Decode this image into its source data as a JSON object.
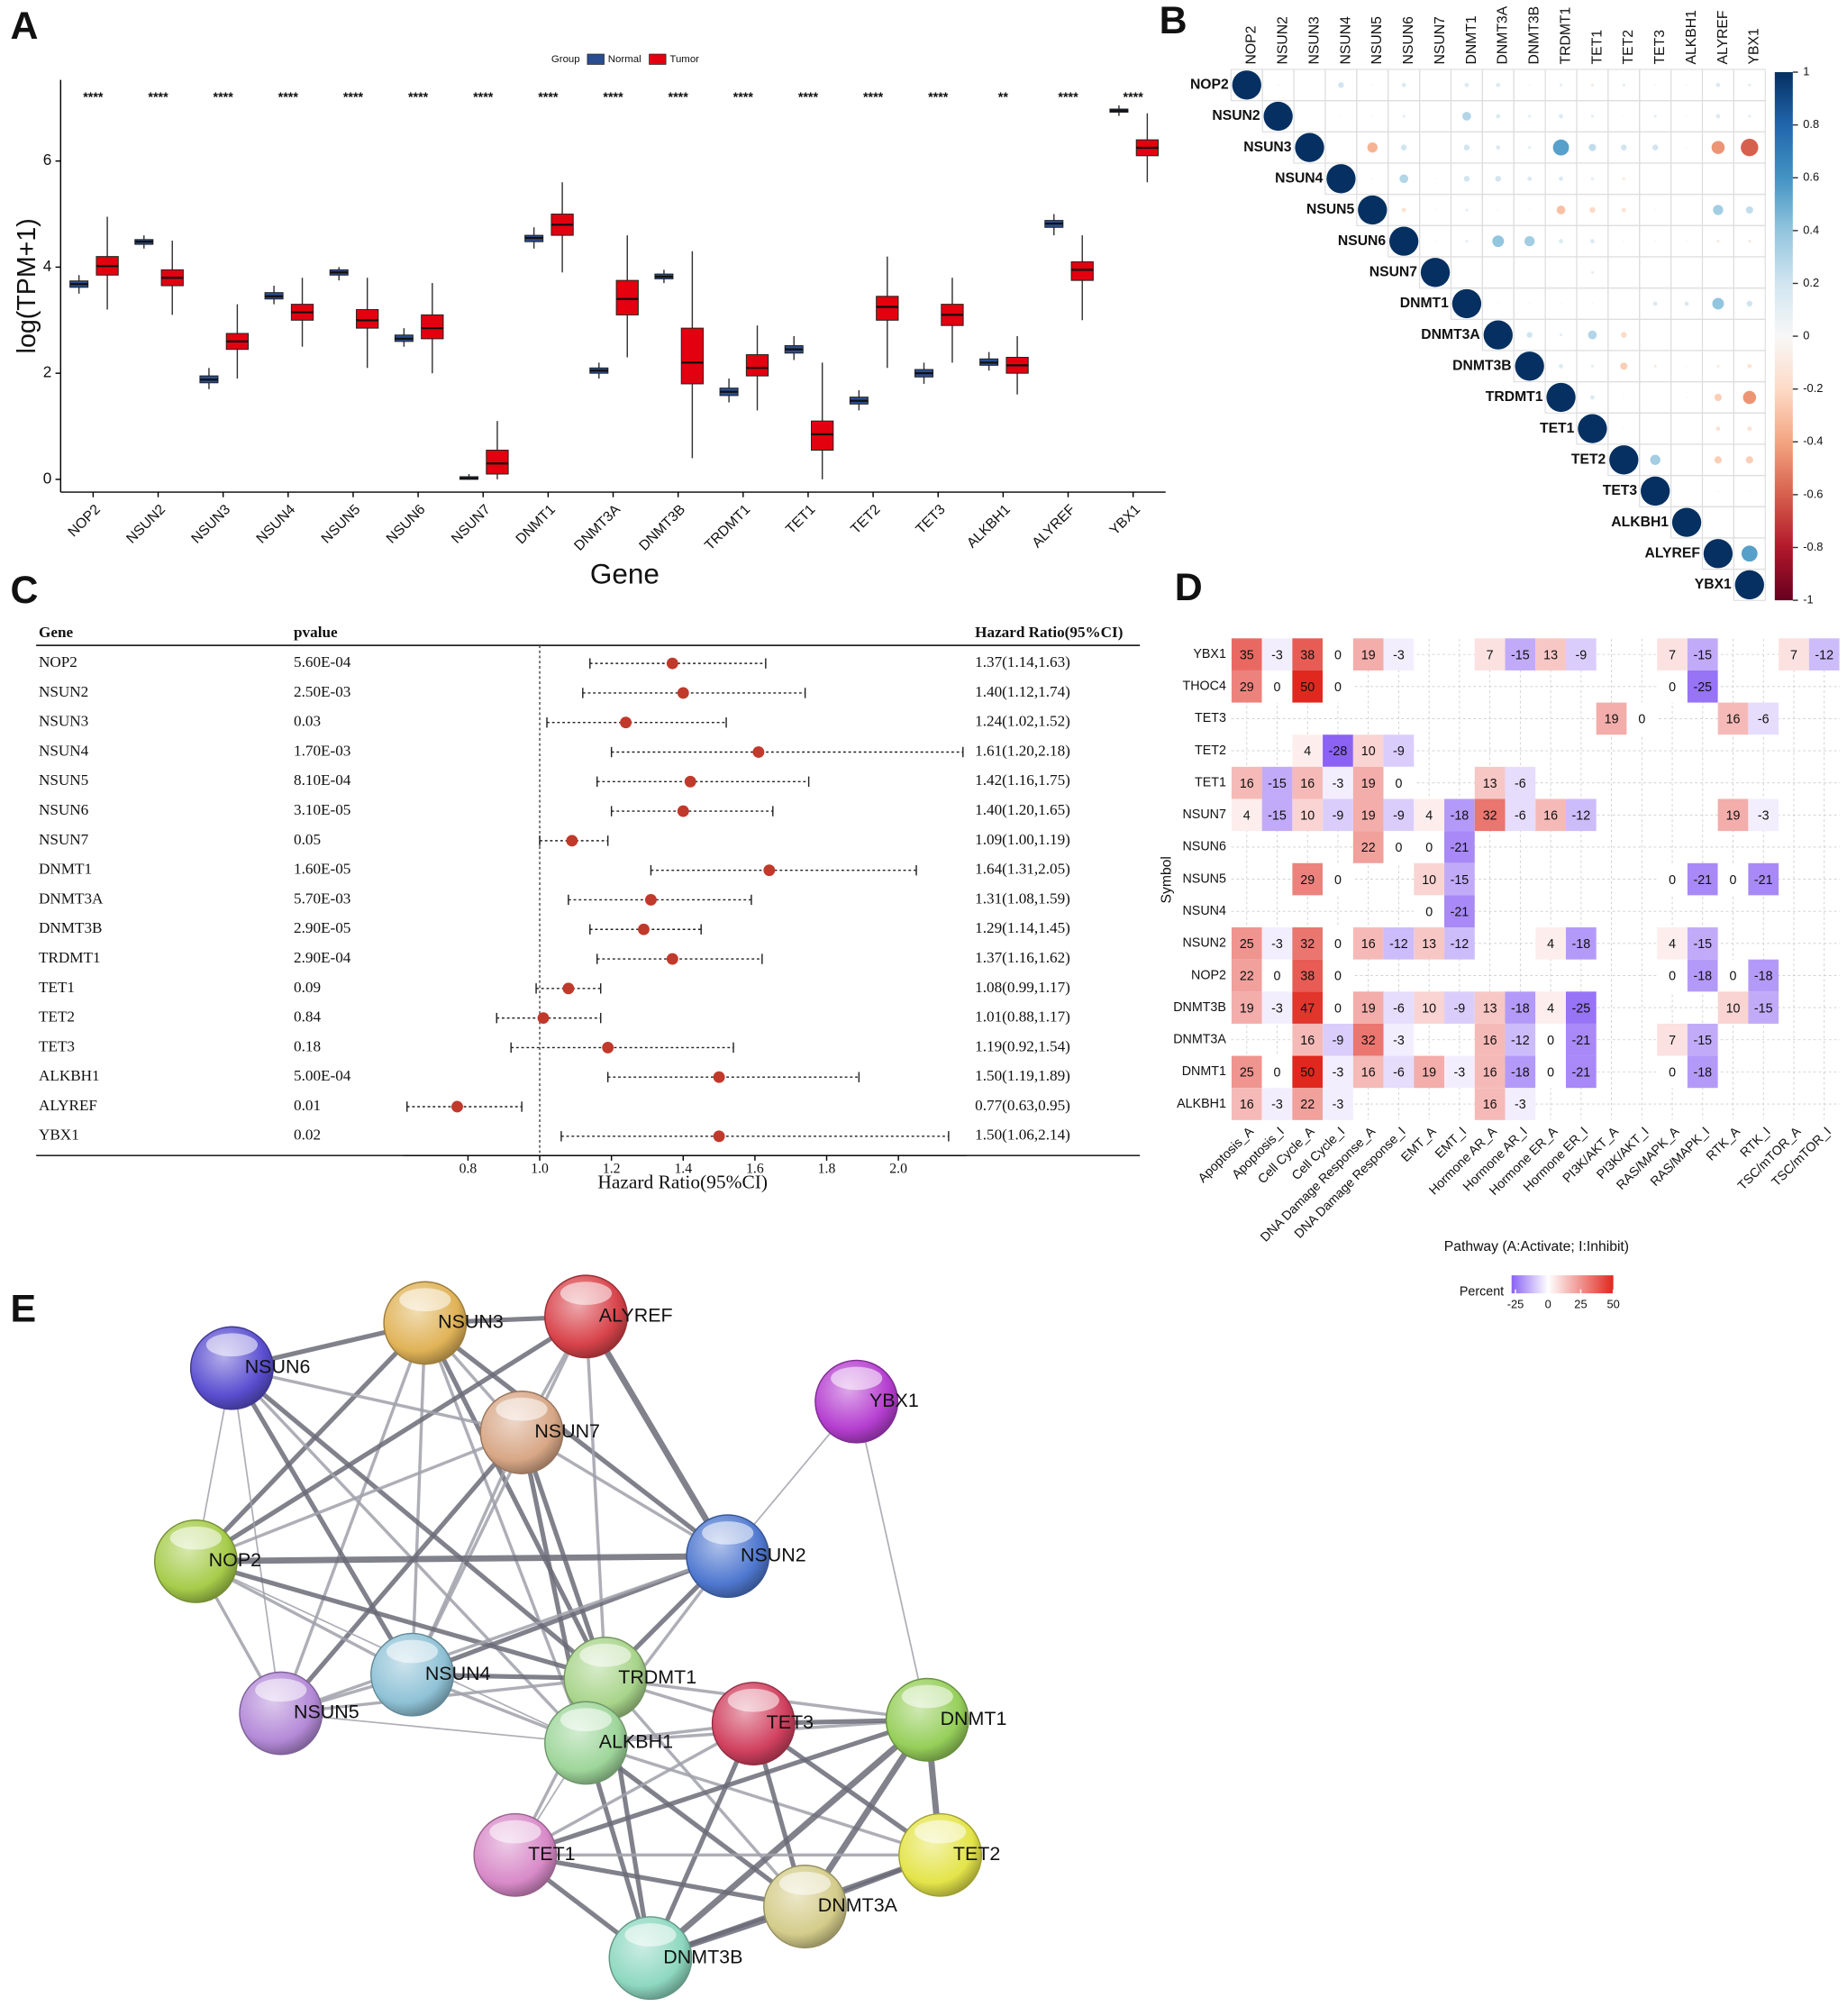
{
  "chart_data": [
    {
      "panel": "A",
      "type": "box",
      "legend_title": "Group",
      "x_label": "Gene",
      "y_label": "log(TPM+1)",
      "categories": [
        "NOP2",
        "NSUN2",
        "NSUN3",
        "NSUN4",
        "NSUN5",
        "NSUN6",
        "NSUN7",
        "DNMT1",
        "DNMT3A",
        "DNMT3B",
        "TRDMT1",
        "TET1",
        "TET2",
        "TET3",
        "ALKBH1",
        "ALYREF",
        "YBX1"
      ],
      "series": [
        {
          "name": "Normal",
          "color": "#2a4d8f",
          "median": [
            3.68,
            4.48,
            1.88,
            3.45,
            3.9,
            2.65,
            0.02,
            4.55,
            2.05,
            3.82,
            1.65,
            2.45,
            1.48,
            2.0,
            2.2,
            4.82,
            6.95
          ],
          "q1": [
            3.62,
            4.43,
            1.82,
            3.4,
            3.85,
            2.6,
            0.0,
            4.48,
            2.0,
            3.78,
            1.58,
            2.38,
            1.42,
            1.93,
            2.15,
            4.75,
            6.92
          ],
          "q3": [
            3.74,
            4.52,
            1.95,
            3.52,
            3.95,
            2.72,
            0.05,
            4.6,
            2.1,
            3.87,
            1.72,
            2.52,
            1.55,
            2.07,
            2.27,
            4.88,
            6.98
          ],
          "whisker_low": [
            3.5,
            4.35,
            1.7,
            3.3,
            3.75,
            2.5,
            0,
            4.35,
            1.9,
            3.7,
            1.45,
            2.25,
            1.3,
            1.8,
            2.05,
            4.6,
            6.85
          ],
          "whisker_high": [
            3.85,
            4.6,
            2.1,
            3.65,
            4.0,
            2.85,
            0.1,
            4.75,
            2.2,
            3.95,
            1.9,
            2.7,
            1.68,
            2.2,
            2.4,
            5.0,
            7.05
          ]
        },
        {
          "name": "Tumor",
          "color": "#e3000f",
          "median": [
            4.02,
            3.8,
            2.6,
            3.15,
            3.0,
            2.85,
            0.3,
            4.8,
            3.4,
            2.2,
            2.1,
            0.85,
            3.25,
            3.1,
            2.15,
            3.95,
            6.25
          ],
          "q1": [
            3.85,
            3.65,
            2.45,
            3.0,
            2.85,
            2.65,
            0.1,
            4.6,
            3.1,
            1.8,
            1.95,
            0.55,
            3.0,
            2.9,
            2.0,
            3.75,
            6.1
          ],
          "q3": [
            4.2,
            3.95,
            2.75,
            3.3,
            3.2,
            3.1,
            0.55,
            5.0,
            3.75,
            2.85,
            2.35,
            1.1,
            3.45,
            3.3,
            2.3,
            4.1,
            6.4
          ],
          "whisker_low": [
            3.2,
            3.1,
            1.9,
            2.5,
            2.1,
            2.0,
            0,
            3.9,
            2.3,
            0.4,
            1.3,
            0,
            2.1,
            2.2,
            1.6,
            3.0,
            5.6
          ],
          "whisker_high": [
            4.95,
            4.5,
            3.3,
            3.8,
            3.8,
            3.7,
            1.1,
            5.6,
            4.6,
            4.3,
            2.9,
            2.2,
            4.2,
            3.8,
            2.7,
            4.6,
            6.9
          ]
        }
      ],
      "annotations": [
        "****",
        "****",
        "****",
        "****",
        "****",
        "****",
        "****",
        "****",
        "****",
        "****",
        "****",
        "****",
        "****",
        "****",
        "**",
        "****",
        "****"
      ],
      "ylim": [
        -0.24,
        7.53
      ],
      "yticks": [
        0,
        2,
        4,
        6
      ],
      "legend_position": "top"
    },
    {
      "panel": "B",
      "type": "corrplot",
      "labels": [
        "NOP2",
        "NSUN2",
        "NSUN3",
        "NSUN4",
        "NSUN5",
        "NSUN6",
        "NSUN7",
        "DNMT1",
        "DNMT3A",
        "DNMT3B",
        "TRDMT1",
        "TET1",
        "TET2",
        "TET3",
        "ALKBH1",
        "ALYREF",
        "YBX1"
      ],
      "matrix": [
        [
          1,
          -0.05,
          0.02,
          0.2,
          0.05,
          0.15,
          0.02,
          0.15,
          0.15,
          0.05,
          0.1,
          -0.1,
          0.1,
          0.05,
          0.05,
          0.15,
          0.1
        ],
        [
          null,
          1,
          0.02,
          0.05,
          0.05,
          0.1,
          0.02,
          0.3,
          0.15,
          0.1,
          0.15,
          0.1,
          0.05,
          0.1,
          0.05,
          0.15,
          0.1
        ],
        [
          null,
          null,
          1,
          0.02,
          -0.35,
          0.2,
          0.02,
          0.2,
          0.15,
          0.1,
          0.55,
          0.25,
          0.2,
          0.2,
          0.05,
          -0.45,
          -0.6
        ],
        [
          null,
          null,
          null,
          1,
          -0.05,
          0.3,
          0.05,
          0.2,
          0.2,
          0.15,
          0.15,
          0.1,
          -0.1,
          0.02,
          0.02,
          0.02,
          0.02
        ],
        [
          null,
          null,
          null,
          null,
          1,
          -0.15,
          0.05,
          0.1,
          -0.05,
          -0.05,
          -0.3,
          -0.2,
          -0.15,
          0.05,
          0.02,
          0.35,
          0.25
        ],
        [
          null,
          null,
          null,
          null,
          null,
          1,
          0.05,
          0.1,
          0.4,
          0.35,
          0.15,
          0.15,
          0.05,
          -0.05,
          -0.05,
          -0.1,
          -0.1
        ],
        [
          null,
          null,
          null,
          null,
          null,
          null,
          1,
          0.02,
          0.02,
          0.02,
          0.02,
          0.1,
          0.02,
          0.02,
          0.02,
          0.02,
          0.02
        ],
        [
          null,
          null,
          null,
          null,
          null,
          null,
          null,
          1,
          0.05,
          0.05,
          0.05,
          0.05,
          0.05,
          0.15,
          0.15,
          0.4,
          0.2
        ],
        [
          null,
          null,
          null,
          null,
          null,
          null,
          null,
          null,
          1,
          0.2,
          0.1,
          0.3,
          -0.2,
          0.02,
          0.02,
          0.02,
          0.02
        ],
        [
          null,
          null,
          null,
          null,
          null,
          null,
          null,
          null,
          null,
          1,
          0.15,
          0.1,
          -0.25,
          -0.1,
          -0.05,
          -0.1,
          -0.15
        ],
        [
          null,
          null,
          null,
          null,
          null,
          null,
          null,
          null,
          null,
          null,
          1,
          0.15,
          0.05,
          0.02,
          0.05,
          -0.25,
          -0.45
        ],
        [
          null,
          null,
          null,
          null,
          null,
          null,
          null,
          null,
          null,
          null,
          null,
          1,
          0.05,
          0.02,
          0.02,
          -0.15,
          -0.15
        ],
        [
          null,
          null,
          null,
          null,
          null,
          null,
          null,
          null,
          null,
          null,
          null,
          null,
          1,
          0.35,
          0.02,
          -0.25,
          -0.25
        ],
        [
          null,
          null,
          null,
          null,
          null,
          null,
          null,
          null,
          null,
          null,
          null,
          null,
          null,
          1,
          0.02,
          0.05,
          0.05
        ],
        [
          null,
          null,
          null,
          null,
          null,
          null,
          null,
          null,
          null,
          null,
          null,
          null,
          null,
          null,
          1,
          0.02,
          0.02
        ],
        [
          null,
          null,
          null,
          null,
          null,
          null,
          null,
          null,
          null,
          null,
          null,
          null,
          null,
          null,
          null,
          1,
          0.55
        ],
        [
          null,
          null,
          null,
          null,
          null,
          null,
          null,
          null,
          null,
          null,
          null,
          null,
          null,
          null,
          null,
          null,
          1
        ]
      ],
      "clim": [
        -1,
        1
      ],
      "colorbar_ticks": [
        1,
        0.8,
        0.6,
        0.4,
        0.2,
        0,
        -0.2,
        -0.4,
        -0.6,
        -0.8,
        -1
      ],
      "colorscale": [
        "#67001f",
        "#b2182b",
        "#d6604d",
        "#f4a582",
        "#fddbc7",
        "#f7f7f7",
        "#d1e5f0",
        "#92c5de",
        "#4393c3",
        "#2166ac",
        "#053061"
      ],
      "label_color": "#d7191c"
    },
    {
      "panel": "C",
      "type": "forest",
      "column_headers": [
        "Gene",
        "pvalue",
        "Hazard Ratio(95%CI)"
      ],
      "categories": [
        "NOP2",
        "NSUN2",
        "NSUN3",
        "NSUN4",
        "NSUN5",
        "NSUN6",
        "NSUN7",
        "DNMT1",
        "DNMT3A",
        "DNMT3B",
        "TRDMT1",
        "TET1",
        "TET2",
        "TET3",
        "ALKBH1",
        "ALYREF",
        "YBX1"
      ],
      "pvalues": [
        "5.60E-04",
        "2.50E-03",
        "0.03",
        "1.70E-03",
        "8.10E-04",
        "3.10E-05",
        "0.05",
        "1.60E-05",
        "5.70E-03",
        "2.90E-05",
        "2.90E-04",
        "0.09",
        "0.84",
        "0.18",
        "5.00E-04",
        "0.01",
        "0.02"
      ],
      "values": [
        1.37,
        1.4,
        1.24,
        1.61,
        1.42,
        1.4,
        1.09,
        1.64,
        1.31,
        1.29,
        1.37,
        1.08,
        1.01,
        1.19,
        1.5,
        0.77,
        1.5
      ],
      "lower": [
        1.14,
        1.12,
        1.02,
        1.2,
        1.16,
        1.2,
        1.0,
        1.31,
        1.08,
        1.14,
        1.16,
        0.99,
        0.88,
        0.92,
        1.19,
        0.63,
        1.06
      ],
      "upper": [
        1.63,
        1.74,
        1.52,
        2.18,
        1.75,
        1.65,
        1.19,
        2.05,
        1.59,
        1.45,
        1.62,
        1.17,
        1.17,
        1.54,
        1.89,
        0.95,
        2.14
      ],
      "value_labels": [
        "1.37(1.14,1.63)",
        "1.40(1.12,1.74)",
        "1.24(1.02,1.52)",
        "1.61(1.20,2.18)",
        "1.42(1.16,1.75)",
        "1.40(1.20,1.65)",
        "1.09(1.00,1.19)",
        "1.64(1.31,2.05)",
        "1.31(1.08,1.59)",
        "1.29(1.14,1.45)",
        "1.37(1.16,1.62)",
        "1.08(0.99,1.17)",
        "1.01(0.88,1.17)",
        "1.19(0.92,1.54)",
        "1.50(1.19,1.89)",
        "0.77(0.63,0.95)",
        "1.50(1.06,2.14)"
      ],
      "x_label": "Hazard Ratio(95%CI)",
      "xlim": [
        0.62,
        2.19
      ],
      "xticks": [
        0.8,
        {
          "value": 1,
          "label": "1.0"
        },
        1.2,
        1.4,
        1.6,
        1.8,
        {
          "value": 2,
          "label": "2.0"
        }
      ],
      "reference_line": 1,
      "color": "#c0392b"
    },
    {
      "panel": "D",
      "type": "heatmap",
      "rows": [
        "YBX1",
        "THOC4",
        "TET3",
        "TET2",
        "TET1",
        "NSUN7",
        "NSUN6",
        "NSUN5",
        "NSUN4",
        "NSUN2",
        "NOP2",
        "DNMT3B",
        "DNMT3A",
        "DNMT1",
        "ALKBH1"
      ],
      "columns": [
        "Apoptosis_A",
        "Apoptosis_I",
        "Cell Cycle_A",
        "Cell Cycle_I",
        "DNA Damage Response_A",
        "DNA Damage Response_I",
        "EMT_A",
        "EMT_I",
        "Hormone AR_A",
        "Hormone AR_I",
        "Hormone ER_A",
        "Hormone ER_I",
        "PI3K/AKT_A",
        "PI3K/AKT_I",
        "RAS/MAPK_A",
        "RAS/MAPK_I",
        "RTK_A",
        "RTK_I",
        "TSC/mTOR_A",
        "TSC/mTOR_I"
      ],
      "values": [
        [
          35,
          -3,
          38,
          0,
          19,
          -3,
          null,
          null,
          7,
          -15,
          13,
          -9,
          null,
          null,
          7,
          -15,
          null,
          null,
          7,
          -12
        ],
        [
          29,
          0,
          50,
          0,
          null,
          null,
          null,
          null,
          null,
          null,
          null,
          null,
          null,
          null,
          0,
          -25,
          null,
          null,
          null,
          null
        ],
        [
          null,
          null,
          null,
          null,
          null,
          null,
          null,
          null,
          null,
          null,
          null,
          null,
          19,
          0,
          null,
          null,
          16,
          -6,
          null,
          null
        ],
        [
          null,
          null,
          4,
          -28,
          10,
          -9,
          null,
          null,
          null,
          null,
          null,
          null,
          null,
          null,
          null,
          null,
          null,
          null,
          null,
          null
        ],
        [
          16,
          -15,
          16,
          -3,
          19,
          0,
          null,
          null,
          13,
          -6,
          null,
          null,
          null,
          null,
          null,
          null,
          null,
          null,
          null,
          null
        ],
        [
          4,
          -15,
          10,
          -9,
          19,
          -9,
          4,
          -18,
          32,
          -6,
          16,
          -12,
          null,
          null,
          null,
          null,
          19,
          -3,
          null,
          null
        ],
        [
          null,
          null,
          null,
          null,
          22,
          0,
          0,
          -21,
          null,
          null,
          null,
          null,
          null,
          null,
          null,
          null,
          null,
          null,
          null,
          null
        ],
        [
          null,
          null,
          29,
          0,
          null,
          null,
          10,
          -15,
          null,
          null,
          null,
          null,
          null,
          null,
          0,
          -21,
          0,
          -21,
          null,
          null
        ],
        [
          null,
          null,
          null,
          null,
          null,
          null,
          0,
          -21,
          null,
          null,
          null,
          null,
          null,
          null,
          null,
          null,
          null,
          null,
          null,
          null
        ],
        [
          25,
          -3,
          32,
          0,
          16,
          -12,
          13,
          -12,
          null,
          null,
          4,
          -18,
          null,
          null,
          4,
          -15,
          null,
          null,
          null,
          null
        ],
        [
          22,
          0,
          38,
          0,
          null,
          null,
          null,
          null,
          null,
          null,
          null,
          null,
          null,
          null,
          0,
          -18,
          0,
          -18,
          null,
          null
        ],
        [
          19,
          -3,
          47,
          0,
          19,
          -6,
          10,
          -9,
          13,
          -18,
          4,
          -25,
          null,
          null,
          null,
          null,
          10,
          -15,
          null,
          null
        ],
        [
          null,
          null,
          16,
          -9,
          32,
          -3,
          null,
          null,
          16,
          -12,
          0,
          -21,
          null,
          null,
          7,
          -15,
          null,
          null,
          null,
          null
        ],
        [
          25,
          0,
          50,
          -3,
          16,
          -6,
          19,
          -3,
          16,
          -18,
          0,
          -21,
          null,
          null,
          0,
          -18,
          null,
          null,
          null,
          null
        ],
        [
          16,
          -3,
          22,
          -3,
          null,
          null,
          null,
          null,
          16,
          -3,
          null,
          null,
          null,
          null,
          null,
          null,
          null,
          null,
          null,
          null
        ]
      ],
      "x_label": "Pathway (A:Activate; I:Inhibit)",
      "y_label": "Symbol",
      "legend_title": "Percent",
      "legend_ticks": [
        -25,
        0,
        25,
        50
      ],
      "clim": [
        -28,
        50
      ],
      "colors": [
        "#8b62f4",
        "#ffffff",
        "#e0281e"
      ],
      "grid": true
    }
  ],
  "network": {
    "panel": "E",
    "nodes": [
      {
        "label": "NSUN3",
        "color": "#e0b357"
      },
      {
        "label": "ALYREF",
        "color": "#d8434a"
      },
      {
        "label": "NSUN6",
        "color": "#5a4ed0"
      },
      {
        "label": "YBX1",
        "color": "#b53ed0"
      },
      {
        "label": "NSUN7",
        "color": "#d8a786"
      },
      {
        "label": "NOP2",
        "color": "#a6cc4a"
      },
      {
        "label": "NSUN2",
        "color": "#4f78d0"
      },
      {
        "label": "NSUN4",
        "color": "#8fc2d6"
      },
      {
        "label": "TRDMT1",
        "color": "#a8d48a"
      },
      {
        "label": "NSUN5",
        "color": "#b48ad8"
      },
      {
        "label": "ALKBH1",
        "color": "#9ed69a"
      },
      {
        "label": "TET3",
        "color": "#d0405e"
      },
      {
        "label": "DNMT1",
        "color": "#96cf5a"
      },
      {
        "label": "TET1",
        "color": "#d88ac8"
      },
      {
        "label": "TET2",
        "color": "#e4e44a"
      },
      {
        "label": "DNMT3A",
        "color": "#d4cc8a"
      },
      {
        "label": "DNMT3B",
        "color": "#8ed8c0"
      }
    ]
  }
}
